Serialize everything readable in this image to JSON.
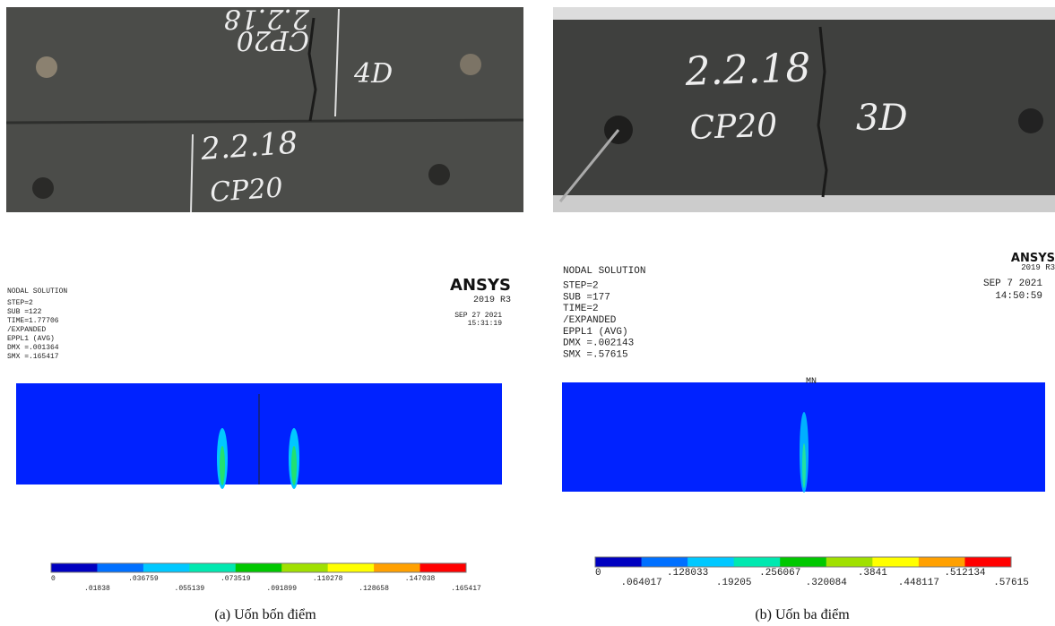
{
  "panels": [
    {
      "photo_texts": [
        "2.2.18",
        "CP20",
        "4D"
      ],
      "header": "NODAL SOLUTION",
      "lines": [
        "STEP=2",
        "SUB =122",
        "TIME=1.77706",
        "/EXPANDED",
        "EPPL1     (AVG)",
        "DMX =.001364",
        "SMX =.165417"
      ],
      "brand": "ANSYS",
      "version": "2019 R3",
      "date": "SEP 27 2021",
      "time": "15:31:19",
      "colorbar_labels": [
        "0",
        ".01838",
        ".036759",
        ".055139",
        ".073519",
        ".091899",
        ".110278",
        ".128658",
        ".147038",
        ".165417"
      ],
      "caption": "(a) Uốn bốn điểm"
    },
    {
      "photo_texts": [
        "2.2.18",
        "CP20",
        "3D"
      ],
      "header": "NODAL SOLUTION",
      "lines": [
        "STEP=2",
        "SUB =177",
        "TIME=2",
        "/EXPANDED",
        "EPPL1     (AVG)",
        "DMX =.002143",
        "SMX =.57615"
      ],
      "brand": "ANSYS",
      "version": "2019 R3",
      "date": "SEP  7 2021",
      "time": "14:50:59",
      "marker": "MN",
      "colorbar_labels": [
        "0",
        ".064017",
        ".128033",
        ".19205",
        ".256067",
        ".320084",
        ".3841",
        ".448117",
        ".512134",
        ".57615"
      ],
      "caption": "(b) Uốn ba điểm"
    }
  ]
}
